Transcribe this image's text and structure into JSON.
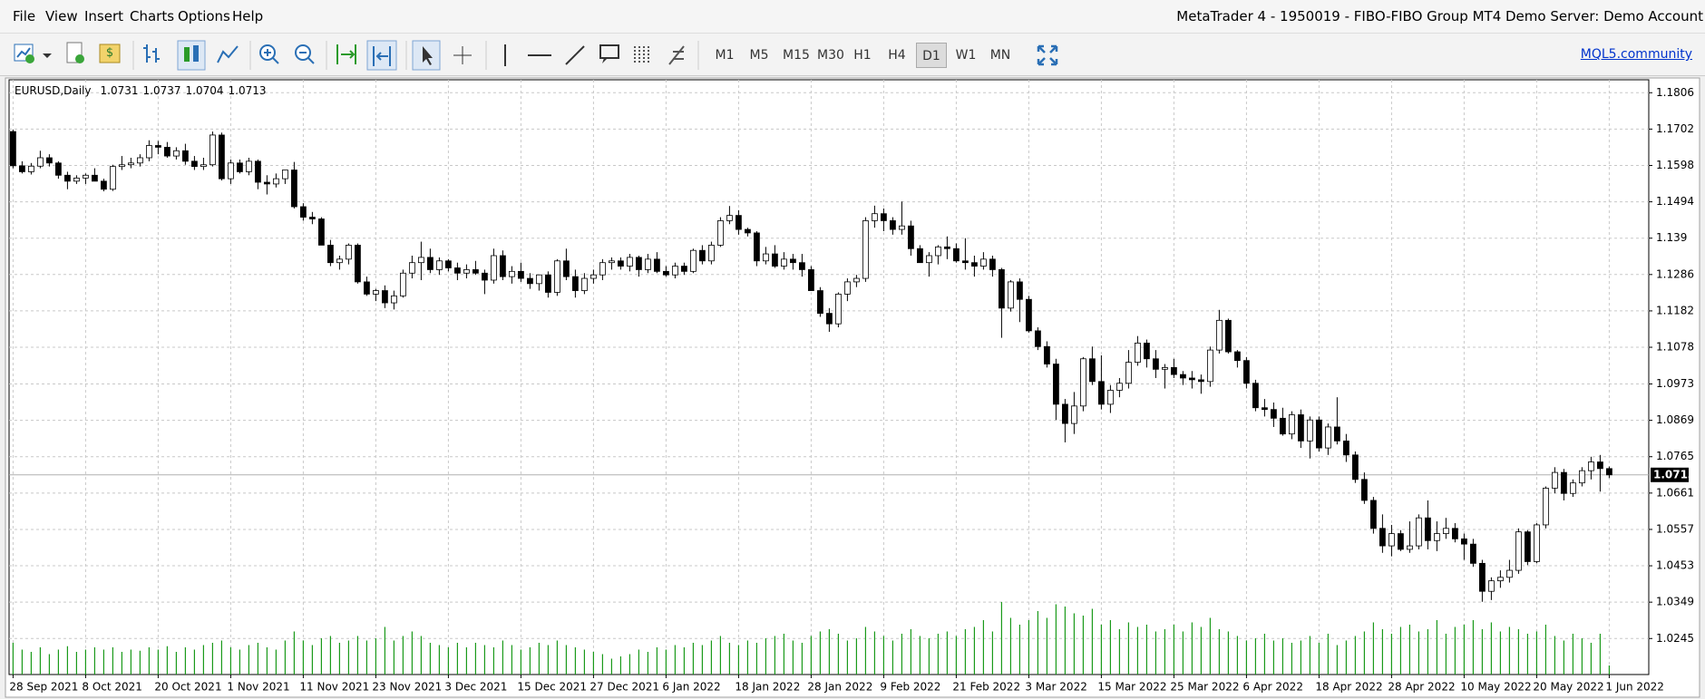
{
  "window": {
    "title": "MetaTrader 4 - 1950019 - FIBO-FIBO Group MT4 Demo Server: Demo Account",
    "menu": [
      "File",
      "View",
      "Insert",
      "Charts",
      "Options",
      "Help"
    ],
    "timeframes": [
      "M1",
      "M5",
      "M15",
      "M30",
      "H1",
      "H4",
      "D1",
      "W1",
      "MN"
    ],
    "active_timeframe": "D1",
    "link": "MQL5.community"
  },
  "chart_data": {
    "type": "candlestick",
    "symbol": "EURUSD,Daily",
    "grid": true,
    "up_color": "#ffffff",
    "down_color": "#000000",
    "volume_color": "#1a9a1a",
    "ylim": [
      1.0142,
      1.1843
    ],
    "yticks": [
      1.1806,
      1.1702,
      1.1598,
      1.1494,
      1.139,
      1.1286,
      1.1182,
      1.1078,
      1.0973,
      1.0869,
      1.0765,
      1.0661,
      1.0557,
      1.0453,
      1.0349,
      1.0245
    ],
    "categories": [
      "28 Sep 2021",
      null,
      null,
      null,
      null,
      null,
      null,
      null,
      "8 Oct 2021",
      null,
      null,
      null,
      null,
      null,
      null,
      null,
      "20 Oct 2021",
      null,
      null,
      null,
      null,
      null,
      null,
      null,
      "1 Nov 2021",
      null,
      null,
      null,
      null,
      null,
      null,
      null,
      "11 Nov 2021",
      null,
      null,
      null,
      null,
      null,
      null,
      null,
      "23 Nov 2021",
      null,
      null,
      null,
      null,
      null,
      null,
      null,
      "3 Dec 2021",
      null,
      null,
      null,
      null,
      null,
      null,
      null,
      "15 Dec 2021",
      null,
      null,
      null,
      null,
      null,
      null,
      null,
      "27 Dec 2021",
      null,
      null,
      null,
      null,
      null,
      null,
      null,
      "6 Jan 2022",
      null,
      null,
      null,
      null,
      null,
      null,
      null,
      "18 Jan 2022",
      null,
      null,
      null,
      null,
      null,
      null,
      null,
      "28 Jan 2022",
      null,
      null,
      null,
      null,
      null,
      null,
      null,
      "9 Feb 2022",
      null,
      null,
      null,
      null,
      null,
      null,
      null,
      "21 Feb 2022",
      null,
      null,
      null,
      null,
      null,
      null,
      null,
      "3 Mar 2022",
      null,
      null,
      null,
      null,
      null,
      null,
      null,
      "15 Mar 2022",
      null,
      null,
      null,
      null,
      null,
      null,
      null,
      "25 Mar 2022",
      null,
      null,
      null,
      null,
      null,
      null,
      null,
      "6 Apr 2022",
      null,
      null,
      null,
      null,
      null,
      null,
      null,
      "18 Apr 2022",
      null,
      null,
      null,
      null,
      null,
      null,
      null,
      "28 Apr 2022",
      null,
      null,
      null,
      null,
      null,
      null,
      null,
      "10 May 2022",
      null,
      null,
      null,
      null,
      null,
      null,
      null,
      "20 May 2022",
      null,
      null,
      null,
      null,
      null,
      null,
      null,
      "1 Jun 2022"
    ],
    "candles": [
      [
        1.1695,
        1.17,
        1.159,
        1.1597
      ],
      [
        1.1597,
        1.161,
        1.1575,
        1.158
      ],
      [
        1.158,
        1.1605,
        1.1572,
        1.1596
      ],
      [
        1.1596,
        1.164,
        1.159,
        1.162
      ],
      [
        1.162,
        1.163,
        1.1595,
        1.1605
      ],
      [
        1.1605,
        1.161,
        1.156,
        1.157
      ],
      [
        1.157,
        1.158,
        1.153,
        1.1553
      ],
      [
        1.1553,
        1.157,
        1.1545,
        1.1562
      ],
      [
        1.1562,
        1.1575,
        1.1545,
        1.157
      ],
      [
        1.157,
        1.159,
        1.1555,
        1.1553
      ],
      [
        1.1553,
        1.156,
        1.1524,
        1.153
      ],
      [
        1.153,
        1.16,
        1.1525,
        1.1595
      ],
      [
        1.1595,
        1.1625,
        1.1585,
        1.16
      ],
      [
        1.16,
        1.162,
        1.159,
        1.1605
      ],
      [
        1.1605,
        1.163,
        1.1595,
        1.162
      ],
      [
        1.162,
        1.167,
        1.161,
        1.1655
      ],
      [
        1.1655,
        1.1668,
        1.163,
        1.165
      ],
      [
        1.165,
        1.1665,
        1.162,
        1.1625
      ],
      [
        1.1625,
        1.165,
        1.1615,
        1.164
      ],
      [
        1.164,
        1.166,
        1.16,
        1.161
      ],
      [
        1.161,
        1.1625,
        1.1585,
        1.1595
      ],
      [
        1.1595,
        1.162,
        1.1585,
        1.16
      ],
      [
        1.16,
        1.1695,
        1.1595,
        1.1685
      ],
      [
        1.1685,
        1.1692,
        1.1555,
        1.156
      ],
      [
        1.156,
        1.1615,
        1.1545,
        1.1605
      ],
      [
        1.1605,
        1.1615,
        1.1575,
        1.158
      ],
      [
        1.158,
        1.162,
        1.157,
        1.161
      ],
      [
        1.161,
        1.1615,
        1.153,
        1.155
      ],
      [
        1.155,
        1.157,
        1.1515,
        1.1545
      ],
      [
        1.1545,
        1.1575,
        1.1535,
        1.156
      ],
      [
        1.156,
        1.1585,
        1.1545,
        1.1585
      ],
      [
        1.1585,
        1.1608,
        1.1475,
        1.148
      ],
      [
        1.148,
        1.149,
        1.144,
        1.145
      ],
      [
        1.145,
        1.1465,
        1.143,
        1.1445
      ],
      [
        1.1445,
        1.145,
        1.137,
        1.137
      ],
      [
        1.137,
        1.1385,
        1.131,
        1.132
      ],
      [
        1.132,
        1.134,
        1.13,
        1.133
      ],
      [
        1.133,
        1.1375,
        1.1315,
        1.137
      ],
      [
        1.137,
        1.1375,
        1.126,
        1.1265
      ],
      [
        1.1265,
        1.128,
        1.1225,
        1.123
      ],
      [
        1.123,
        1.1245,
        1.121,
        1.124
      ],
      [
        1.124,
        1.1255,
        1.119,
        1.1205
      ],
      [
        1.1205,
        1.124,
        1.1186,
        1.1225
      ],
      [
        1.1225,
        1.13,
        1.122,
        1.129
      ],
      [
        1.129,
        1.134,
        1.1275,
        1.132
      ],
      [
        1.132,
        1.138,
        1.127,
        1.1335
      ],
      [
        1.1335,
        1.136,
        1.129,
        1.13
      ],
      [
        1.13,
        1.1335,
        1.1285,
        1.1325
      ],
      [
        1.1325,
        1.133,
        1.1295,
        1.1305
      ],
      [
        1.1305,
        1.132,
        1.127,
        1.129
      ],
      [
        1.129,
        1.1315,
        1.1275,
        1.13
      ],
      [
        1.13,
        1.1325,
        1.1285,
        1.129
      ],
      [
        1.129,
        1.13,
        1.123,
        1.127
      ],
      [
        1.127,
        1.136,
        1.126,
        1.134
      ],
      [
        1.134,
        1.1355,
        1.127,
        1.128
      ],
      [
        1.128,
        1.131,
        1.126,
        1.1295
      ],
      [
        1.1295,
        1.132,
        1.1265,
        1.1275
      ],
      [
        1.1275,
        1.129,
        1.1245,
        1.126
      ],
      [
        1.126,
        1.1285,
        1.124,
        1.1285
      ],
      [
        1.1285,
        1.1295,
        1.122,
        1.1235
      ],
      [
        1.1235,
        1.133,
        1.1225,
        1.1325
      ],
      [
        1.1325,
        1.136,
        1.127,
        1.128
      ],
      [
        1.128,
        1.13,
        1.122,
        1.124
      ],
      [
        1.124,
        1.129,
        1.123,
        1.1275
      ],
      [
        1.1275,
        1.13,
        1.126,
        1.1285
      ],
      [
        1.1285,
        1.133,
        1.127,
        1.132
      ],
      [
        1.132,
        1.1335,
        1.13,
        1.1325
      ],
      [
        1.1325,
        1.1335,
        1.13,
        1.131
      ],
      [
        1.131,
        1.1345,
        1.1295,
        1.1335
      ],
      [
        1.1335,
        1.134,
        1.128,
        1.13
      ],
      [
        1.13,
        1.1345,
        1.129,
        1.133
      ],
      [
        1.133,
        1.135,
        1.129,
        1.1295
      ],
      [
        1.1295,
        1.131,
        1.128,
        1.1285
      ],
      [
        1.1285,
        1.132,
        1.1275,
        1.131
      ],
      [
        1.131,
        1.132,
        1.1285,
        1.1295
      ],
      [
        1.1295,
        1.136,
        1.129,
        1.1355
      ],
      [
        1.1355,
        1.137,
        1.1315,
        1.1325
      ],
      [
        1.1325,
        1.138,
        1.1315,
        1.137
      ],
      [
        1.137,
        1.145,
        1.1365,
        1.144
      ],
      [
        1.144,
        1.1482,
        1.143,
        1.1455
      ],
      [
        1.1455,
        1.147,
        1.14,
        1.1415
      ],
      [
        1.1415,
        1.142,
        1.1395,
        1.1405
      ],
      [
        1.1405,
        1.141,
        1.131,
        1.1325
      ],
      [
        1.1325,
        1.1365,
        1.1315,
        1.1345
      ],
      [
        1.1345,
        1.137,
        1.1305,
        1.131
      ],
      [
        1.131,
        1.135,
        1.13,
        1.133
      ],
      [
        1.133,
        1.1345,
        1.13,
        1.132
      ],
      [
        1.132,
        1.1345,
        1.128,
        1.13
      ],
      [
        1.13,
        1.131,
        1.124,
        1.124
      ],
      [
        1.124,
        1.125,
        1.1165,
        1.1175
      ],
      [
        1.1175,
        1.119,
        1.1122,
        1.1145
      ],
      [
        1.1145,
        1.1235,
        1.1135,
        1.123
      ],
      [
        1.123,
        1.1275,
        1.121,
        1.1265
      ],
      [
        1.1265,
        1.1285,
        1.125,
        1.1275
      ],
      [
        1.1275,
        1.145,
        1.1265,
        1.144
      ],
      [
        1.144,
        1.1483,
        1.142,
        1.146
      ],
      [
        1.146,
        1.1475,
        1.141,
        1.144
      ],
      [
        1.144,
        1.145,
        1.14,
        1.1415
      ],
      [
        1.1415,
        1.1495,
        1.14,
        1.1425
      ],
      [
        1.1425,
        1.144,
        1.134,
        1.136
      ],
      [
        1.136,
        1.137,
        1.132,
        1.132
      ],
      [
        1.132,
        1.135,
        1.128,
        1.134
      ],
      [
        1.134,
        1.137,
        1.1315,
        1.1365
      ],
      [
        1.1365,
        1.1395,
        1.133,
        1.136
      ],
      [
        1.136,
        1.1375,
        1.132,
        1.1325
      ],
      [
        1.1325,
        1.139,
        1.13,
        1.132
      ],
      [
        1.132,
        1.134,
        1.128,
        1.131
      ],
      [
        1.131,
        1.135,
        1.13,
        1.133
      ],
      [
        1.133,
        1.134,
        1.128,
        1.13
      ],
      [
        1.13,
        1.1305,
        1.1105,
        1.119
      ],
      [
        1.119,
        1.127,
        1.118,
        1.1265
      ],
      [
        1.1265,
        1.1275,
        1.115,
        1.1215
      ],
      [
        1.1215,
        1.1225,
        1.112,
        1.1125
      ],
      [
        1.1125,
        1.1135,
        1.107,
        1.108
      ],
      [
        1.108,
        1.1095,
        1.102,
        1.103
      ],
      [
        1.103,
        1.1045,
        1.087,
        1.0915
      ],
      [
        1.0915,
        1.093,
        1.0806,
        1.086
      ],
      [
        1.086,
        1.095,
        1.083,
        1.091
      ],
      [
        1.091,
        1.105,
        1.0895,
        1.1045
      ],
      [
        1.1045,
        1.108,
        1.097,
        1.098
      ],
      [
        1.098,
        1.1055,
        1.09,
        1.0915
      ],
      [
        1.0915,
        1.097,
        1.089,
        1.0955
      ],
      [
        1.0955,
        1.099,
        1.0935,
        1.0975
      ],
      [
        1.0975,
        1.107,
        1.096,
        1.1035
      ],
      [
        1.1035,
        1.111,
        1.1025,
        1.109
      ],
      [
        1.109,
        1.11,
        1.102,
        1.1045
      ],
      [
        1.1045,
        1.107,
        1.099,
        1.1015
      ],
      [
        1.1015,
        1.103,
        1.096,
        1.102
      ],
      [
        1.102,
        1.1045,
        1.099,
        1.1
      ],
      [
        1.1,
        1.101,
        1.097,
        1.099
      ],
      [
        1.099,
        1.101,
        1.096,
        1.0985
      ],
      [
        1.0985,
        1.1,
        1.0945,
        1.098
      ],
      [
        1.098,
        1.108,
        1.0965,
        1.107
      ],
      [
        1.107,
        1.1185,
        1.106,
        1.1155
      ],
      [
        1.1155,
        1.116,
        1.106,
        1.1065
      ],
      [
        1.1065,
        1.107,
        1.102,
        1.104
      ],
      [
        1.104,
        1.105,
        1.096,
        1.0975
      ],
      [
        1.0975,
        1.0985,
        1.0895,
        1.0905
      ],
      [
        1.0905,
        1.093,
        1.088,
        1.09
      ],
      [
        1.09,
        1.092,
        1.085,
        1.0875
      ],
      [
        1.0875,
        1.0905,
        1.0825,
        1.083
      ],
      [
        1.083,
        1.0895,
        1.0815,
        1.0885
      ],
      [
        1.0885,
        1.09,
        1.079,
        1.081
      ],
      [
        1.081,
        1.088,
        1.076,
        1.087
      ],
      [
        1.087,
        1.088,
        1.078,
        1.079
      ],
      [
        1.079,
        1.086,
        1.077,
        1.085
      ],
      [
        1.085,
        1.0935,
        1.08,
        1.081
      ],
      [
        1.081,
        1.083,
        1.075,
        1.077
      ],
      [
        1.077,
        1.078,
        1.069,
        1.07
      ],
      [
        1.07,
        1.072,
        1.063,
        1.064
      ],
      [
        1.064,
        1.065,
        1.0545,
        1.056
      ],
      [
        1.056,
        1.06,
        1.049,
        1.051
      ],
      [
        1.051,
        1.057,
        1.048,
        1.0545
      ],
      [
        1.0545,
        1.0555,
        1.0495,
        1.05
      ],
      [
        1.05,
        1.058,
        1.049,
        1.051
      ],
      [
        1.051,
        1.06,
        1.05,
        1.059
      ],
      [
        1.059,
        1.064,
        1.05,
        1.0525
      ],
      [
        1.0525,
        1.058,
        1.0495,
        1.0545
      ],
      [
        1.0545,
        1.059,
        1.053,
        1.056
      ],
      [
        1.056,
        1.0575,
        1.052,
        1.053
      ],
      [
        1.053,
        1.0545,
        1.047,
        1.0515
      ],
      [
        1.0515,
        1.053,
        1.045,
        1.046
      ],
      [
        1.046,
        1.047,
        1.035,
        1.038
      ],
      [
        1.038,
        1.042,
        1.0355,
        1.041
      ],
      [
        1.041,
        1.044,
        1.039,
        1.042
      ],
      [
        1.042,
        1.047,
        1.0405,
        1.044
      ],
      [
        1.044,
        1.056,
        1.043,
        1.055
      ],
      [
        1.055,
        1.0555,
        1.0455,
        1.0465
      ],
      [
        1.0465,
        1.0575,
        1.046,
        1.057
      ],
      [
        1.057,
        1.068,
        1.056,
        1.0675
      ],
      [
        1.0675,
        1.0735,
        1.066,
        1.072
      ],
      [
        1.072,
        1.073,
        1.064,
        1.066
      ],
      [
        1.066,
        1.07,
        1.065,
        1.069
      ],
      [
        1.069,
        1.0735,
        1.068,
        1.0725
      ],
      [
        1.0725,
        1.0765,
        1.07,
        1.075
      ],
      [
        1.075,
        1.077,
        1.0665,
        1.0731
      ],
      [
        1.0731,
        1.0737,
        1.0704,
        1.0713
      ]
    ],
    "volumes": [
      28,
      22,
      20,
      24,
      18,
      22,
      25,
      20,
      22,
      24,
      22,
      24,
      20,
      22,
      21,
      24,
      22,
      25,
      20,
      24,
      22,
      26,
      28,
      30,
      24,
      22,
      26,
      28,
      24,
      22,
      30,
      38,
      30,
      26,
      32,
      34,
      28,
      30,
      34,
      30,
      32,
      42,
      30,
      34,
      38,
      34,
      28,
      26,
      24,
      28,
      24,
      28,
      26,
      24,
      30,
      26,
      22,
      24,
      28,
      26,
      30,
      26,
      24,
      22,
      20,
      18,
      14,
      16,
      18,
      22,
      20,
      24,
      22,
      26,
      24,
      28,
      26,
      30,
      34,
      28,
      26,
      30,
      28,
      32,
      34,
      36,
      30,
      28,
      34,
      38,
      40,
      36,
      30,
      32,
      42,
      38,
      34,
      30,
      36,
      40,
      34,
      32,
      36,
      38,
      34,
      40,
      42,
      48,
      38,
      64,
      50,
      44,
      48,
      56,
      50,
      62,
      60,
      54,
      52,
      58,
      44,
      48,
      40,
      46,
      42,
      44,
      38,
      40,
      44,
      38,
      46,
      42,
      50,
      40,
      38,
      34,
      30,
      32,
      36,
      30,
      32,
      28,
      30,
      34,
      28,
      36,
      26,
      30,
      34,
      38,
      46,
      40,
      36,
      42,
      44,
      38,
      40,
      48,
      36,
      42,
      44,
      48,
      40,
      46,
      38,
      42,
      40,
      36,
      38,
      44,
      34,
      30,
      36,
      32,
      28,
      36,
      8
    ]
  }
}
